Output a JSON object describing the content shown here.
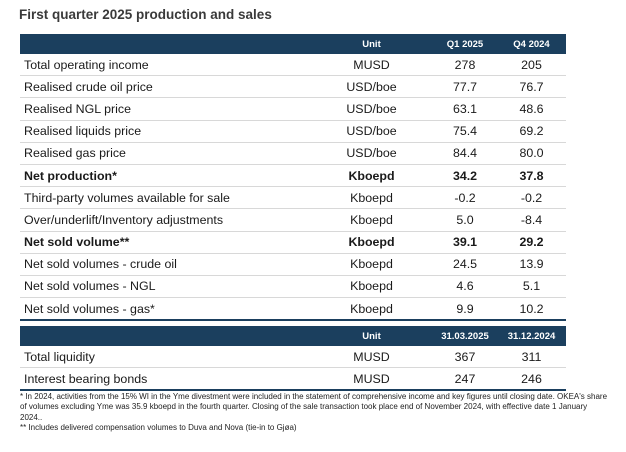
{
  "title": "First quarter 2025 production and sales",
  "table1": {
    "headers": [
      "",
      "Unit",
      "Q1 2025",
      "Q4 2024"
    ],
    "rows": [
      {
        "label": "Total operating income",
        "unit": "MUSD",
        "q1": "278",
        "q4": "205",
        "bold": false
      },
      {
        "label": "Realised crude oil price",
        "unit": "USD/boe",
        "q1": "77.7",
        "q4": "76.7",
        "bold": false
      },
      {
        "label": "Realised NGL price",
        "unit": "USD/boe",
        "q1": "63.1",
        "q4": "48.6",
        "bold": false
      },
      {
        "label": "Realised liquids price",
        "unit": "USD/boe",
        "q1": "75.4",
        "q4": "69.2",
        "bold": false
      },
      {
        "label": "Realised gas price",
        "unit": "USD/boe",
        "q1": "84.4",
        "q4": "80.0",
        "bold": false
      },
      {
        "label": "Net production*",
        "unit": "Kboepd",
        "q1": "34.2",
        "q4": "37.8",
        "bold": true
      },
      {
        "label": "Third-party volumes available for sale",
        "unit": "Kboepd",
        "q1": "-0.2",
        "q4": "-0.2",
        "bold": false
      },
      {
        "label": "Over/underlift/Inventory adjustments",
        "unit": "Kboepd",
        "q1": "5.0",
        "q4": "-8.4",
        "bold": false
      },
      {
        "label": "Net sold volume**",
        "unit": "Kboepd",
        "q1": "39.1",
        "q4": "29.2",
        "bold": true
      },
      {
        "label": "Net sold volumes - crude oil",
        "unit": "Kboepd",
        "q1": "24.5",
        "q4": "13.9",
        "bold": false
      },
      {
        "label": "Net sold volumes - NGL",
        "unit": "Kboepd",
        "q1": "4.6",
        "q4": "5.1",
        "bold": false
      },
      {
        "label": "Net sold volumes - gas*",
        "unit": "Kboepd",
        "q1": "9.9",
        "q4": "10.2",
        "bold": false
      }
    ]
  },
  "table2": {
    "headers": [
      "",
      "Unit",
      "31.03.2025",
      "31.12.2024"
    ],
    "rows": [
      {
        "label": "Total liquidity",
        "unit": "MUSD",
        "q1": "367",
        "q4": "311",
        "bold": false
      },
      {
        "label": "Interest bearing bonds",
        "unit": "MUSD",
        "q1": "247",
        "q4": "246",
        "bold": false
      }
    ]
  },
  "footnotes": [
    "* In 2024, activities from the 15% WI in the Yme divestment were included in the statement of comprehensive income and key figures until closing date. OKEA's share of volumes excluding Yme was 35.9 kboepd in the fourth quarter. Closing of the sale transaction took place end of November 2024, with effective date 1 January 2024..",
    "** Includes delivered compensation volumes to Duva and Nova (tie-in to Gjøa)"
  ]
}
